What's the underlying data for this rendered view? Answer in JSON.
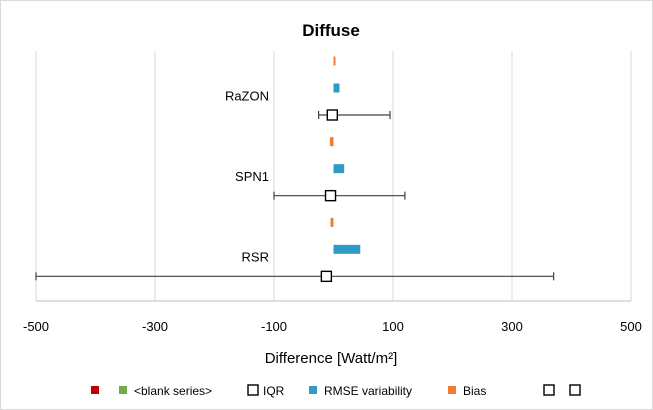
{
  "chart_data": {
    "type": "bar",
    "title": "Diffuse",
    "xlabel": "Difference [Watt/m²]",
    "ylabel": "",
    "xlim": [
      -500,
      500
    ],
    "xticks": [
      "-500",
      "-300",
      "-100",
      "100",
      "300",
      "500"
    ],
    "categories": [
      "RaZON",
      "SPN1",
      "RSR"
    ],
    "grid": true,
    "legend_position": "bottom",
    "series": [
      {
        "name": "",
        "type": "hidden"
      },
      {
        "name": "<blank series>",
        "type": "hidden"
      },
      {
        "name": "IQR",
        "type": "box-marker",
        "center": [
          -2,
          -5,
          -12
        ],
        "whisker_low": [
          -25,
          -100,
          -500
        ],
        "whisker_high": [
          95,
          120,
          370
        ]
      },
      {
        "name": "RMSE variability",
        "type": "bar",
        "start": [
          0,
          0,
          0
        ],
        "values": [
          10,
          18,
          45
        ]
      },
      {
        "name": "Bias",
        "type": "bar",
        "start": [
          0,
          0,
          0
        ],
        "values": [
          2,
          -6,
          -5
        ]
      },
      {
        "name": "",
        "type": "marker"
      },
      {
        "name": "",
        "type": "marker"
      }
    ]
  },
  "legend": {
    "items": [
      {
        "label": "",
        "color": "#c00000",
        "shape": "square"
      },
      {
        "label": "<blank series>",
        "color": "#70ad47",
        "shape": "square"
      },
      {
        "label": "IQR",
        "color": "#ffffff",
        "shape": "box"
      },
      {
        "label": "RMSE variability",
        "color": "#2e9bc6",
        "shape": "square"
      },
      {
        "label": "Bias",
        "color": "#ed7d31",
        "shape": "square"
      },
      {
        "label": "",
        "color": "#ffffff",
        "shape": "box"
      },
      {
        "label": "",
        "color": "#ffffff",
        "shape": "box"
      }
    ]
  },
  "colors": {
    "rmse": "#2e9bc6",
    "bias": "#ed7d31",
    "grid": "#d9d9d9",
    "axis": "#bfbfbf",
    "whisker": "#404040"
  }
}
